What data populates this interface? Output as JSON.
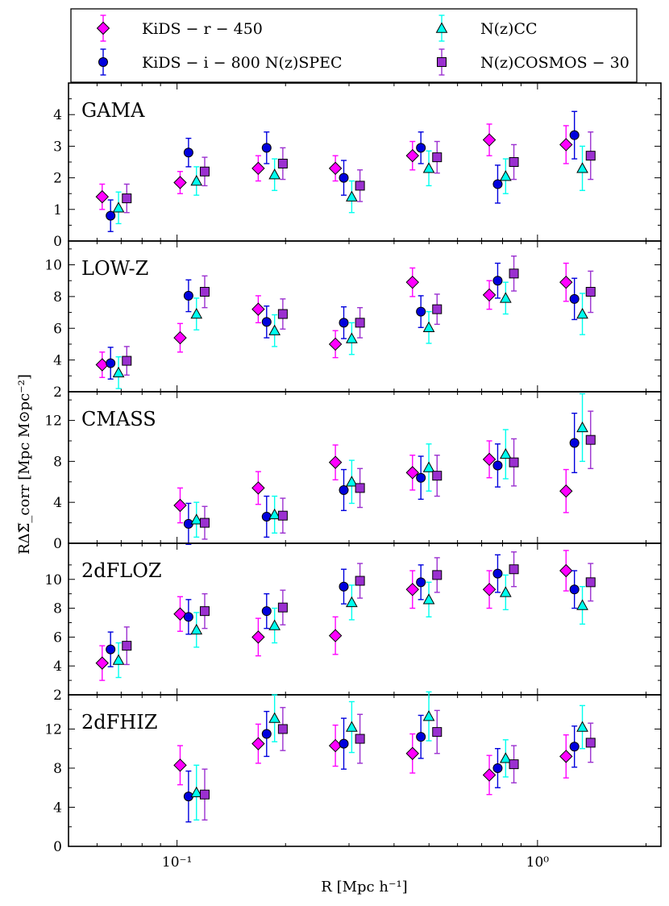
{
  "chart_data": {
    "type": "scatter",
    "title": "",
    "xlabel": "R [Mpc h⁻¹]",
    "ylabel": "RΔΣ̅_corr [Mpc M⊙pc⁻²]",
    "xscale": "log",
    "xlim": [
      0.05,
      2.2
    ],
    "x_tick_labels": [
      "10⁻¹",
      "10⁰"
    ],
    "legend": {
      "placement": "top",
      "entries": [
        {
          "key": "r450",
          "label": "KiDS − r − 450",
          "marker": "diamond",
          "color": "#ff00ff"
        },
        {
          "key": "i800",
          "label": "KiDS − i − 800 N(z)SPEC",
          "marker": "circle",
          "color": "#0000dd"
        },
        {
          "key": "cc",
          "label": "N(z)CC",
          "marker": "triangle",
          "color": "#00ffee"
        },
        {
          "key": "cosmos",
          "label": "N(z)COSMOS − 30",
          "marker": "square",
          "color": "#9b30d0"
        }
      ]
    },
    "x_bins": [
      0.062,
      0.102,
      0.168,
      0.275,
      0.45,
      0.735,
      1.2
    ],
    "x_offset_factors": [
      1.0,
      1.055,
      1.11,
      1.17
    ],
    "panels": [
      {
        "name": "GAMA",
        "ylim": [
          0,
          5
        ],
        "yticks": [
          0,
          1,
          2,
          3,
          4
        ],
        "series": {
          "r450": {
            "y": [
              1.4,
              1.85,
              2.3,
              2.3,
              2.7,
              3.2,
              3.05
            ],
            "err": [
              0.4,
              0.35,
              0.4,
              0.4,
              0.45,
              0.5,
              0.6
            ]
          },
          "i800": {
            "y": [
              0.8,
              2.8,
              2.95,
              2.0,
              2.95,
              1.8,
              3.35
            ],
            "err": [
              0.5,
              0.45,
              0.5,
              0.55,
              0.5,
              0.6,
              0.75
            ]
          },
          "cc": {
            "y": [
              1.05,
              1.9,
              2.1,
              1.4,
              2.3,
              2.05,
              2.3
            ],
            "err": [
              0.5,
              0.45,
              0.5,
              0.5,
              0.55,
              0.55,
              0.7
            ]
          },
          "cosmos": {
            "y": [
              1.35,
              2.2,
              2.45,
              1.75,
              2.65,
              2.5,
              2.7
            ],
            "err": [
              0.45,
              0.45,
              0.5,
              0.5,
              0.5,
              0.55,
              0.75
            ]
          }
        }
      },
      {
        "name": "LOW-Z",
        "ylim": [
          2,
          11.5
        ],
        "yticks": [
          2,
          4,
          6,
          8,
          10
        ],
        "series": {
          "r450": {
            "y": [
              3.7,
              5.4,
              7.2,
              5.0,
              8.9,
              8.1,
              8.9
            ],
            "err": [
              0.8,
              0.9,
              0.85,
              0.85,
              0.9,
              0.9,
              1.2
            ]
          },
          "i800": {
            "y": [
              3.8,
              8.05,
              6.4,
              6.35,
              7.05,
              9.0,
              7.85
            ],
            "err": [
              1.0,
              1.0,
              1.0,
              1.0,
              1.0,
              1.1,
              1.3
            ]
          },
          "cc": {
            "y": [
              3.2,
              6.9,
              5.85,
              5.35,
              6.05,
              7.9,
              6.9
            ],
            "err": [
              1.0,
              1.0,
              1.0,
              1.0,
              1.0,
              1.0,
              1.3
            ]
          },
          "cosmos": {
            "y": [
              3.95,
              8.3,
              6.9,
              6.35,
              7.2,
              9.45,
              8.3
            ],
            "err": [
              0.9,
              1.0,
              0.95,
              0.95,
              0.95,
              1.1,
              1.3
            ]
          }
        }
      },
      {
        "name": "CMASS",
        "ylim": [
          0,
          14.8
        ],
        "yticks": [
          0,
          4,
          8,
          12
        ],
        "series": {
          "r450": {
            "y": [
              null,
              3.7,
              5.4,
              7.9,
              6.9,
              8.2,
              5.1
            ],
            "err": [
              null,
              1.7,
              1.6,
              1.7,
              1.7,
              1.8,
              2.1
            ]
          },
          "i800": {
            "y": [
              null,
              1.9,
              2.6,
              5.2,
              6.4,
              7.6,
              9.8
            ],
            "err": [
              null,
              2.0,
              2.0,
              2.0,
              2.1,
              2.1,
              2.9
            ]
          },
          "cc": {
            "y": [
              null,
              2.3,
              2.8,
              6.0,
              7.4,
              8.7,
              11.3
            ],
            "err": [
              null,
              1.7,
              1.8,
              2.1,
              2.3,
              2.4,
              3.3
            ]
          },
          "cosmos": {
            "y": [
              null,
              2.0,
              2.7,
              5.4,
              6.6,
              7.9,
              10.1
            ],
            "err": [
              null,
              1.6,
              1.7,
              1.9,
              2.0,
              2.3,
              2.8
            ]
          }
        }
      },
      {
        "name": "2dFLOZ",
        "ylim": [
          2,
          12.5
        ],
        "yticks": [
          2,
          4,
          6,
          8,
          10
        ],
        "series": {
          "r450": {
            "y": [
              4.2,
              7.6,
              6.0,
              6.1,
              9.3,
              9.3,
              10.6
            ],
            "err": [
              1.2,
              1.2,
              1.3,
              1.3,
              1.3,
              1.3,
              1.4
            ]
          },
          "i800": {
            "y": [
              5.15,
              7.4,
              7.8,
              9.5,
              9.8,
              10.4,
              9.3
            ],
            "err": [
              1.2,
              1.2,
              1.2,
              1.2,
              1.2,
              1.3,
              1.3
            ]
          },
          "cc": {
            "y": [
              4.4,
              6.5,
              6.8,
              8.4,
              8.6,
              9.1,
              8.2
            ],
            "err": [
              1.2,
              1.2,
              1.2,
              1.2,
              1.2,
              1.2,
              1.3
            ]
          },
          "cosmos": {
            "y": [
              5.4,
              7.8,
              8.05,
              9.9,
              10.3,
              10.7,
              9.8
            ],
            "err": [
              1.3,
              1.2,
              1.2,
              1.2,
              1.2,
              1.2,
              1.3
            ]
          }
        }
      },
      {
        "name": "2dFHIZ",
        "ylim": [
          0,
          15.5
        ],
        "yticks": [
          0,
          4,
          8,
          12
        ],
        "series": {
          "r450": {
            "y": [
              null,
              8.3,
              10.5,
              10.3,
              9.5,
              7.3,
              9.2
            ],
            "err": [
              null,
              2.0,
              2.0,
              2.1,
              2.0,
              2.0,
              2.2
            ]
          },
          "i800": {
            "y": [
              null,
              5.1,
              11.5,
              10.5,
              11.2,
              8.0,
              10.2
            ],
            "err": [
              null,
              2.6,
              2.3,
              2.6,
              2.2,
              2.0,
              2.1
            ]
          },
          "cc": {
            "y": [
              null,
              5.5,
              13.1,
              12.2,
              13.3,
              9.0,
              12.2
            ],
            "err": [
              null,
              2.8,
              2.4,
              2.6,
              2.5,
              1.9,
              2.2
            ]
          },
          "cosmos": {
            "y": [
              null,
              5.3,
              12.0,
              11.0,
              11.7,
              8.4,
              10.6
            ],
            "err": [
              null,
              2.6,
              2.2,
              2.5,
              2.2,
              1.9,
              2.0
            ]
          }
        }
      }
    ]
  }
}
